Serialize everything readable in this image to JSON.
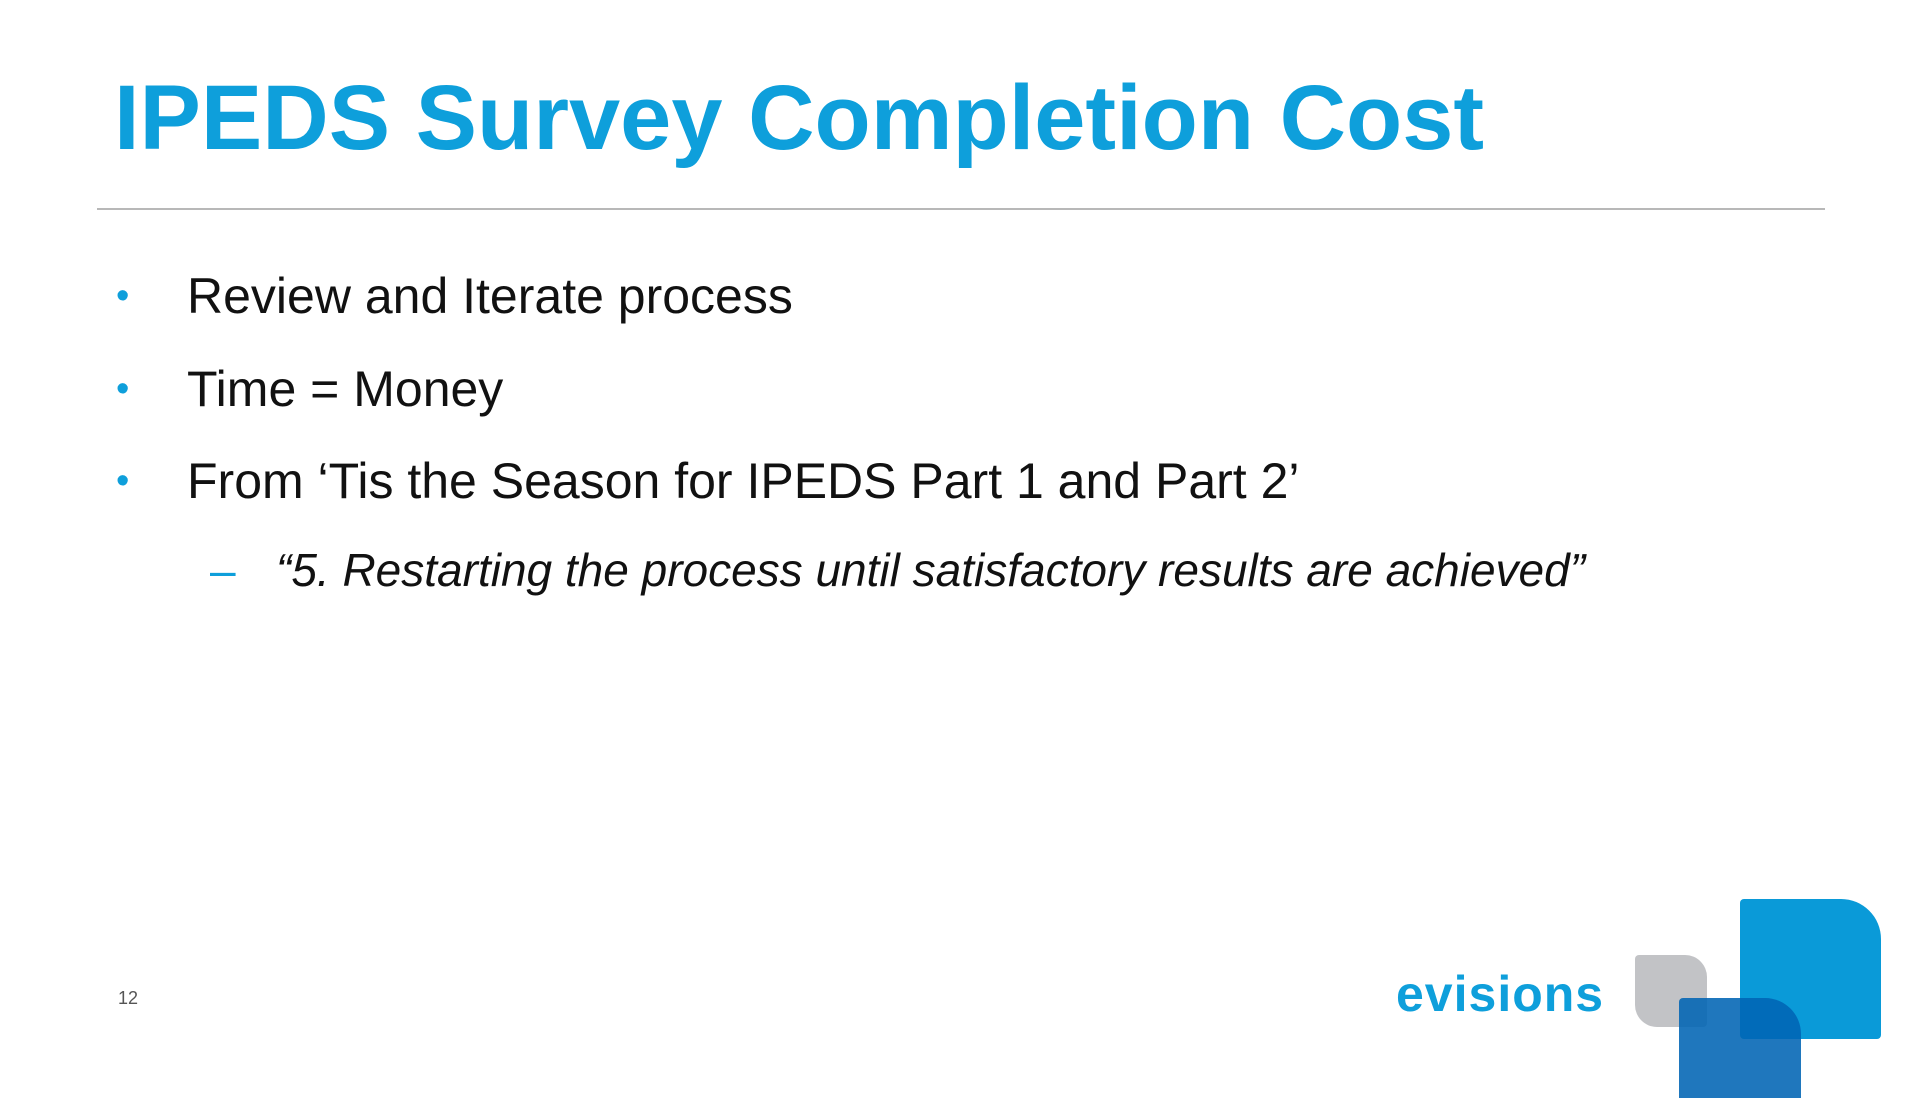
{
  "slide": {
    "title": "IPEDS Survey Completion Cost",
    "bullets": [
      {
        "marker": "•",
        "text": "Review and Iterate process"
      },
      {
        "marker": "•",
        "text": "Time = Money"
      },
      {
        "marker": "•",
        "text": "From ‘Tis the Season for IPEDS Part 1 and Part 2’"
      }
    ],
    "sub_bullet": {
      "marker": "–",
      "text": "“5.  Restarting the process until satisfactory results are achieved”"
    },
    "page_number": "12"
  },
  "logo": {
    "text": "evisions",
    "colors": {
      "blue": "#0a9ad8",
      "dark_blue": "#0064b4",
      "gray": "#c2c3c6"
    }
  },
  "colors": {
    "accent": "#0e9fdb",
    "text": "#111111"
  }
}
